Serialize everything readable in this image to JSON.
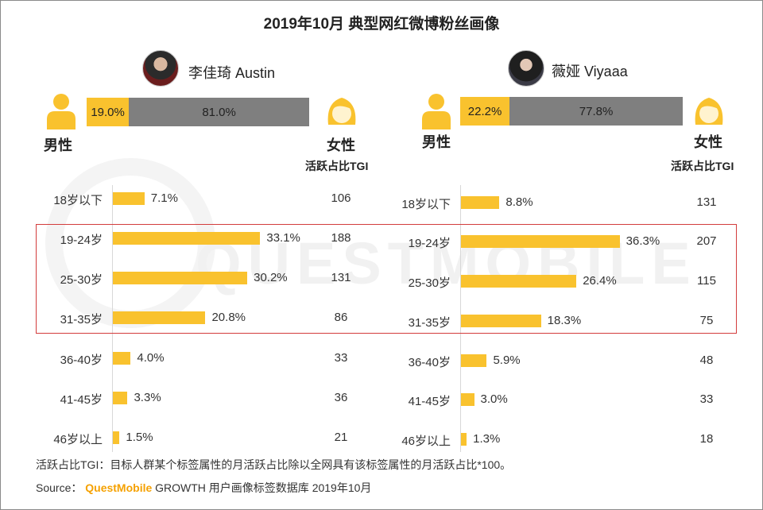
{
  "title": "2019年10月 典型网红微博粉丝画像",
  "watermark": "QUESTMOBILE",
  "colors": {
    "bar": "#f9c22e",
    "female_ratio": "#7f7f7f",
    "highlight": "#d33c3c",
    "brand": "#f5a100"
  },
  "gender_labels": {
    "male": "男性",
    "female": "女性",
    "tgi_header": "活跃占比TGI"
  },
  "chart_data": [
    {
      "type": "bar",
      "name": "李佳琦 Austin",
      "gender": {
        "male": "19.0%",
        "female": "81.0%",
        "male_value": 19.0,
        "female_value": 81.0
      },
      "categories": [
        "18岁以下",
        "19-24岁",
        "25-30岁",
        "31-35岁",
        "36-40岁",
        "41-45岁",
        "46岁以上"
      ],
      "values": [
        7.1,
        33.1,
        30.2,
        20.8,
        4.0,
        3.3,
        1.5
      ],
      "value_labels": [
        "7.1%",
        "33.1%",
        "30.2%",
        "20.8%",
        "4.0%",
        "3.3%",
        "1.5%"
      ],
      "tgi": [
        "106",
        "188",
        "131",
        "86",
        "33",
        "36",
        "21"
      ]
    },
    {
      "type": "bar",
      "name": "薇娅 Viyaaa",
      "gender": {
        "male": "22.2%",
        "female": "77.8%",
        "male_value": 22.2,
        "female_value": 77.8
      },
      "categories": [
        "18岁以下",
        "19-24岁",
        "25-30岁",
        "31-35岁",
        "36-40岁",
        "41-45岁",
        "46岁以上"
      ],
      "values": [
        8.8,
        36.3,
        26.4,
        18.3,
        5.9,
        3.0,
        1.3
      ],
      "value_labels": [
        "8.8%",
        "36.3%",
        "26.4%",
        "18.3%",
        "5.9%",
        "3.0%",
        "1.3%"
      ],
      "tgi": [
        "131",
        "207",
        "115",
        "75",
        "48",
        "33",
        "18"
      ]
    }
  ],
  "footnote": "活跃占比TGI：目标人群某个标签属性的月活跃占比除以全网具有该标签属性的月活跃占比*100。",
  "source": {
    "label": "Source：",
    "brand": "QuestMobile",
    "text": "GROWTH 用户画像标签数据库 2019年10月"
  }
}
